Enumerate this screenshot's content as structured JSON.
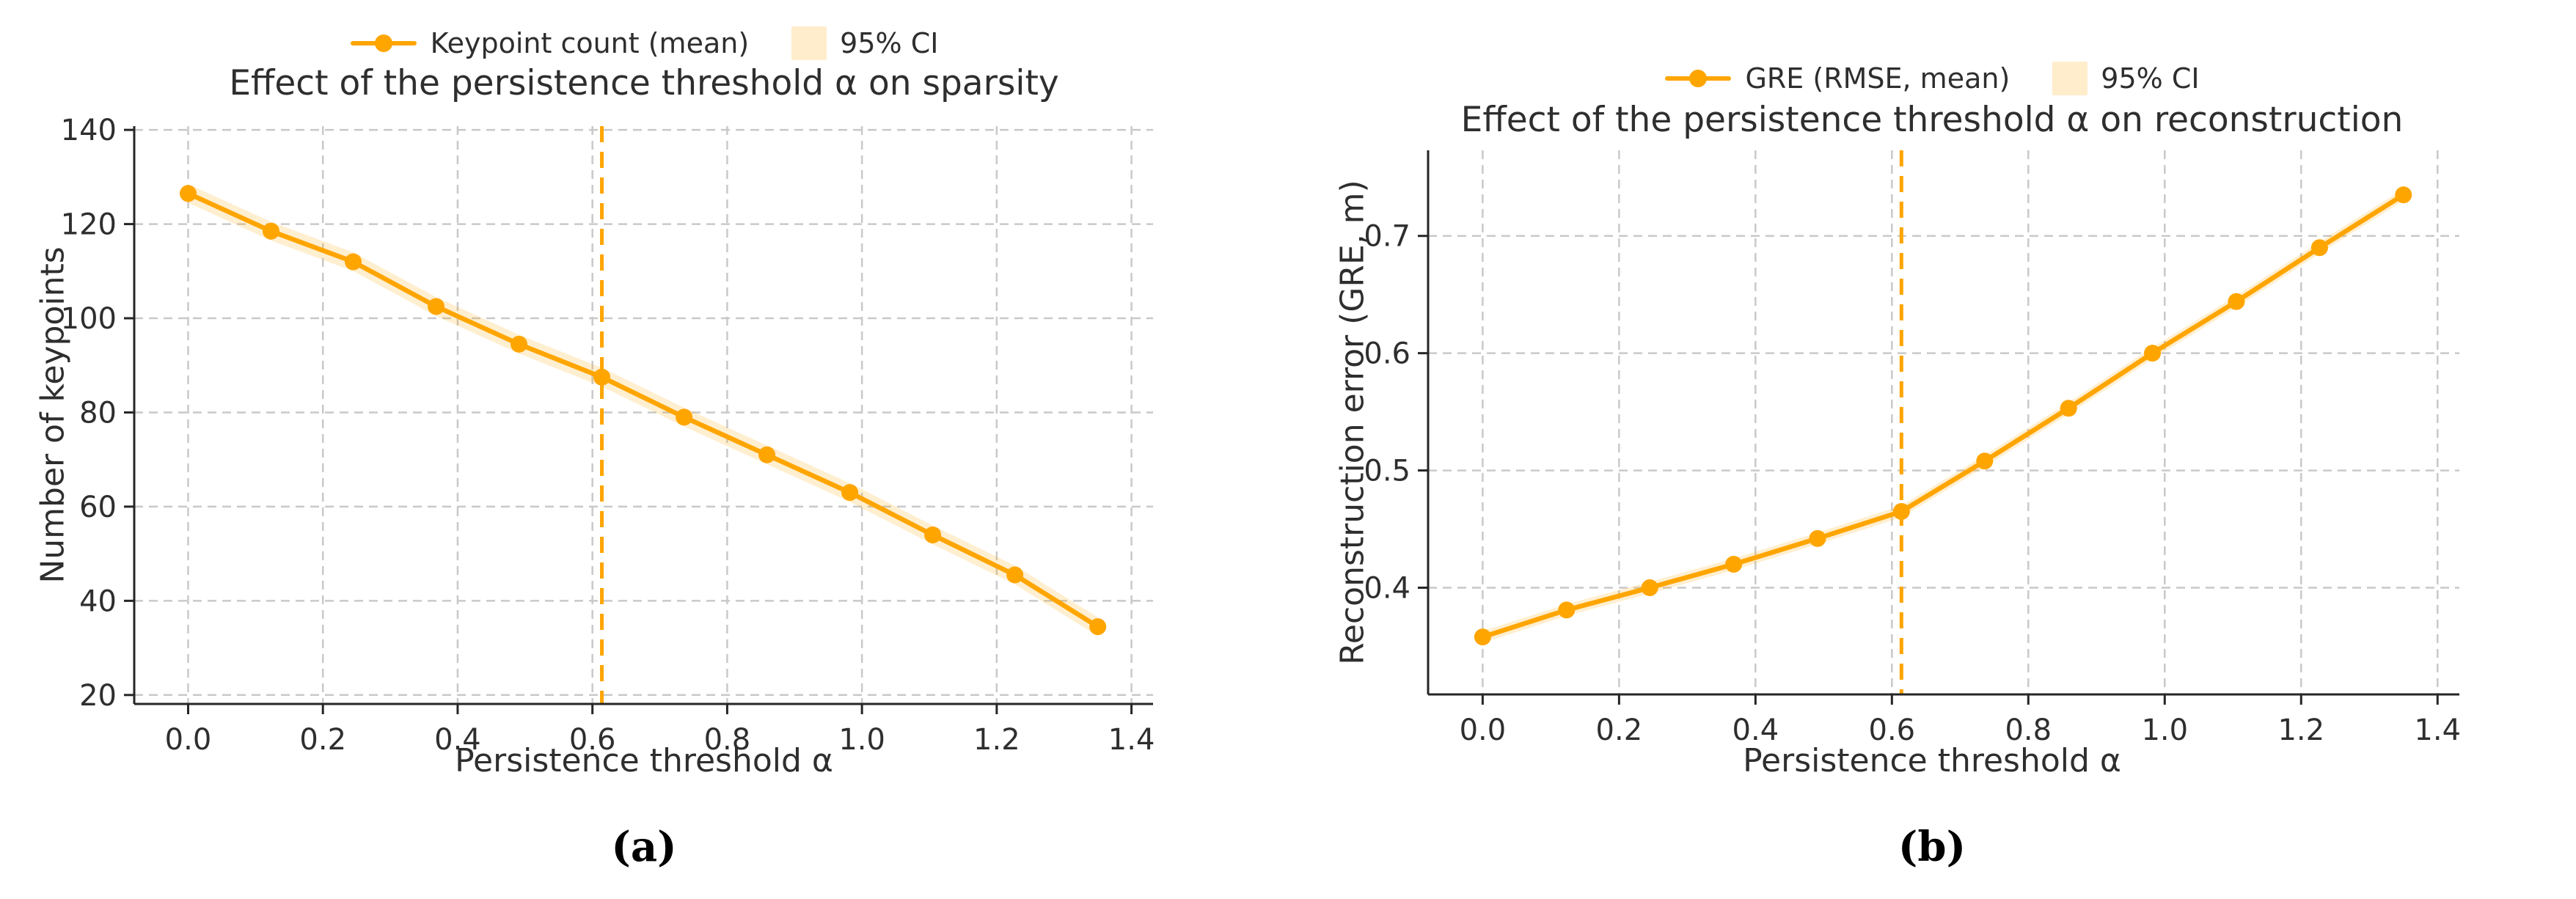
{
  "figure": {
    "background": "#ffffff",
    "text_color": "#2e2e2e",
    "grid_color": "#c9c9c9"
  },
  "chart_data": [
    {
      "type": "line",
      "panel": "a",
      "caption": "(a)",
      "title": "Effect of the persistence threshold α on sparsity",
      "xlabel": "Persistence threshold α",
      "ylabel": "Number of keypoints",
      "legend": {
        "line_label": "Keypoint count (mean)",
        "band_label": "95% CI",
        "position": "top-center"
      },
      "line_color": "#FFA500",
      "band_color": "#FFEDCC",
      "marker": "circle",
      "vline": {
        "x": 0.614,
        "style": "dashed",
        "color": "#FFA500"
      },
      "x": [
        0.0,
        0.123,
        0.245,
        0.368,
        0.491,
        0.614,
        0.736,
        0.859,
        0.982,
        1.105,
        1.227,
        1.35
      ],
      "y": [
        126.5,
        118.5,
        112.0,
        102.5,
        94.5,
        87.5,
        79.0,
        71.0,
        63.0,
        54.0,
        45.5,
        34.5
      ],
      "ci_half_width": 2.0,
      "xticks": {
        "values": [
          0.0,
          0.2,
          0.4,
          0.6,
          0.8,
          1.0,
          1.2,
          1.4
        ],
        "labels": [
          "0.0",
          "0.2",
          "0.4",
          "0.6",
          "0.8",
          "1.0",
          "1.2",
          "1.4"
        ]
      },
      "yticks": {
        "values": [
          20,
          40,
          60,
          80,
          100,
          120,
          140
        ],
        "labels": [
          "20",
          "40",
          "60",
          "80",
          "100",
          "120",
          "140"
        ]
      },
      "xlim": [
        -0.08,
        1.432
      ],
      "ylim": [
        18.1,
        140.8
      ],
      "grid": true
    },
    {
      "type": "line",
      "panel": "b",
      "caption": "(b)",
      "title": "Effect of the persistence threshold α on reconstruction",
      "xlabel": "Persistence threshold α",
      "ylabel": "Reconstruction error (GRE, m)",
      "legend": {
        "line_label": "GRE (RMSE, mean)",
        "band_label": "95% CI",
        "position": "top-center"
      },
      "line_color": "#FFA500",
      "band_color": "#FFEDCC",
      "marker": "circle",
      "vline": {
        "x": 0.614,
        "style": "dashed",
        "color": "#FFA500"
      },
      "x": [
        0.0,
        0.123,
        0.245,
        0.368,
        0.491,
        0.614,
        0.736,
        0.859,
        0.982,
        1.105,
        1.227,
        1.35
      ],
      "y": [
        0.358,
        0.381,
        0.4,
        0.42,
        0.442,
        0.465,
        0.508,
        0.553,
        0.6,
        0.644,
        0.69,
        0.735
      ],
      "ci_half_width": 0.005,
      "xticks": {
        "values": [
          0.0,
          0.2,
          0.4,
          0.6,
          0.8,
          1.0,
          1.2,
          1.4
        ],
        "labels": [
          "0.0",
          "0.2",
          "0.4",
          "0.6",
          "0.8",
          "1.0",
          "1.2",
          "1.4"
        ]
      },
      "yticks": {
        "values": [
          0.4,
          0.5,
          0.6,
          0.7
        ],
        "labels": [
          "0.4",
          "0.5",
          "0.6",
          "0.7"
        ]
      },
      "xlim": [
        -0.08,
        1.432
      ],
      "ylim": [
        0.309,
        0.773
      ],
      "grid": true
    }
  ]
}
